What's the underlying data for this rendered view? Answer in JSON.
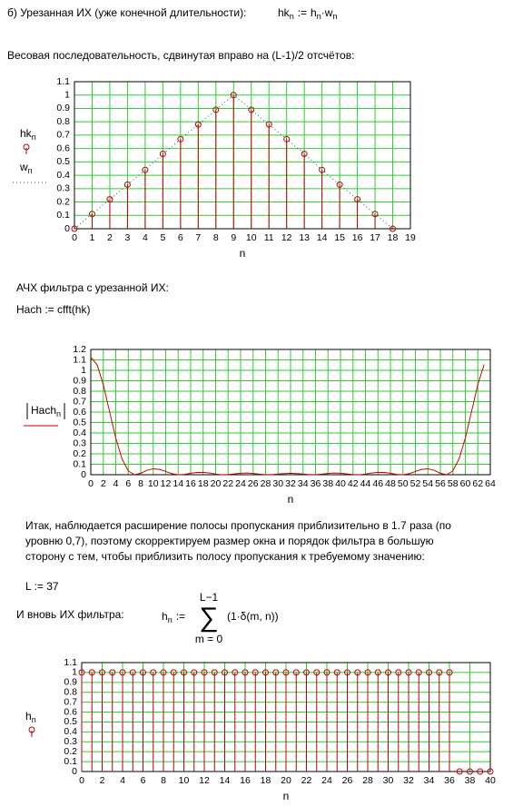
{
  "text": {
    "heading_b": "б) Урезанная ИХ (уже конечной длительности):",
    "formula_hk": [
      "hk",
      "n",
      ":=",
      "h",
      "n",
      "·",
      "w",
      "n"
    ],
    "weights_caption": "Весовая последовательность, сдвинутая вправо на (L-1)/2 отсчётов:",
    "afc_caption": "АЧХ фильтра с урезанной ИХ:",
    "formula_hach": "Hach := cfft(hk)",
    "conclusion": [
      "Итак, наблюдается расширение полосы пропускания приблизительно в 1.7 раза (по",
      "уровню 0,7), поэтому скорректируем размер окна и порядок фильтра в большую",
      "сторону с тем, чтобы приблизить полосу пропускания к требуемому значению:"
    ],
    "formula_L": "L := 37",
    "again_caption": "И вновь ИХ фильтра:",
    "formula_h": {
      "lhs": "h",
      "lhs_sub": "n",
      "op": ":=",
      "upper": "L−1",
      "sigma": "∑",
      "lower": "m = 0",
      "body": "(1·δ(m, n))"
    }
  },
  "chart_data": [
    {
      "type": "stem",
      "x_label": "n",
      "xlim": [
        0,
        19
      ],
      "ylim": [
        0,
        1.1
      ],
      "xticks": [
        0,
        1,
        2,
        3,
        4,
        5,
        6,
        7,
        8,
        9,
        10,
        11,
        12,
        13,
        14,
        15,
        16,
        17,
        18,
        19
      ],
      "yticks": [
        0,
        0.1,
        0.2,
        0.3,
        0.4,
        0.5,
        0.6,
        0.7,
        0.8,
        0.9,
        1,
        1.1
      ],
      "grid": true,
      "grid_color": "#33cc33",
      "x": [
        0,
        1,
        2,
        3,
        4,
        5,
        6,
        7,
        8,
        9,
        10,
        11,
        12,
        13,
        14,
        15,
        16,
        17,
        18
      ],
      "series": [
        {
          "name": "hk",
          "subscript": "n",
          "color": "#c00000",
          "values": [
            0,
            0.11,
            0.22,
            0.33,
            0.44,
            0.56,
            0.67,
            0.78,
            0.89,
            1,
            0.89,
            0.78,
            0.67,
            0.56,
            0.44,
            0.33,
            0.22,
            0.11,
            0
          ]
        },
        {
          "name": "w",
          "subscript": "n",
          "type": "line",
          "dash": "dotted",
          "color": "#007070",
          "values": [
            0,
            0.11,
            0.22,
            0.33,
            0.44,
            0.56,
            0.67,
            0.78,
            0.89,
            1,
            0.89,
            0.78,
            0.67,
            0.56,
            0.44,
            0.33,
            0.22,
            0.11,
            0
          ]
        }
      ]
    },
    {
      "type": "line",
      "x_label": "n",
      "xlim": [
        0,
        64
      ],
      "ylim": [
        0,
        1.2
      ],
      "xticks": [
        0,
        2,
        4,
        6,
        8,
        10,
        12,
        14,
        16,
        18,
        20,
        22,
        24,
        26,
        28,
        30,
        32,
        34,
        36,
        38,
        40,
        42,
        44,
        46,
        48,
        50,
        52,
        54,
        56,
        58,
        60,
        62,
        64
      ],
      "yticks": [
        0,
        0.1,
        0.2,
        0.3,
        0.4,
        0.5,
        0.6,
        0.7,
        0.8,
        0.9,
        1,
        1.1,
        1.2
      ],
      "grid": true,
      "grid_color": "#33cc33",
      "x": [
        0,
        1,
        2,
        3,
        4,
        5,
        6,
        7,
        8,
        9,
        10,
        11,
        12,
        13,
        14,
        15,
        16,
        17,
        18,
        19,
        20,
        21,
        22,
        23,
        24,
        25,
        26,
        27,
        28,
        29,
        30,
        31,
        32,
        33,
        34,
        35,
        36,
        37,
        38,
        39,
        40,
        41,
        42,
        43,
        44,
        45,
        46,
        47,
        48,
        49,
        50,
        51,
        52,
        53,
        54,
        55,
        56,
        57,
        58,
        59,
        60,
        61,
        62,
        63
      ],
      "series": [
        {
          "name": "Hach",
          "subscript": "n",
          "abs": true,
          "color": "#cc0000",
          "values": [
            1.125,
            1.055,
            0.864,
            0.607,
            0.351,
            0.152,
            0.037,
            0,
            0.014,
            0.042,
            0.057,
            0.051,
            0.031,
            0.01,
            0,
            0.003,
            0.014,
            0.022,
            0.023,
            0.016,
            0.006,
            0,
            0.002,
            0.008,
            0.014,
            0.016,
            0.012,
            0.005,
            0.001,
            0.001,
            0.006,
            0.011,
            0.014,
            0.011,
            0.006,
            0.001,
            0.001,
            0.005,
            0.012,
            0.016,
            0.014,
            0.008,
            0.002,
            0,
            0.006,
            0.016,
            0.023,
            0.022,
            0.014,
            0.003,
            0,
            0.01,
            0.031,
            0.051,
            0.057,
            0.042,
            0.014,
            0,
            0.037,
            0.152,
            0.351,
            0.607,
            0.864,
            1.055
          ]
        }
      ]
    },
    {
      "type": "stem",
      "x_label": "n",
      "xlim": [
        0,
        40
      ],
      "ylim": [
        0,
        1.1
      ],
      "xticks": [
        0,
        2,
        4,
        6,
        8,
        10,
        12,
        14,
        16,
        18,
        20,
        22,
        24,
        26,
        28,
        30,
        32,
        34,
        36,
        38,
        40
      ],
      "yticks": [
        0,
        0.1,
        0.2,
        0.3,
        0.4,
        0.5,
        0.6,
        0.7,
        0.8,
        0.9,
        1,
        1.1
      ],
      "grid": true,
      "grid_color": "#33cc33",
      "x": [
        0,
        1,
        2,
        3,
        4,
        5,
        6,
        7,
        8,
        9,
        10,
        11,
        12,
        13,
        14,
        15,
        16,
        17,
        18,
        19,
        20,
        21,
        22,
        23,
        24,
        25,
        26,
        27,
        28,
        29,
        30,
        31,
        32,
        33,
        34,
        35,
        36,
        37,
        38,
        39,
        40
      ],
      "series": [
        {
          "name": "h",
          "subscript": "n",
          "color": "#c00000",
          "values": [
            1,
            1,
            1,
            1,
            1,
            1,
            1,
            1,
            1,
            1,
            1,
            1,
            1,
            1,
            1,
            1,
            1,
            1,
            1,
            1,
            1,
            1,
            1,
            1,
            1,
            1,
            1,
            1,
            1,
            1,
            1,
            1,
            1,
            1,
            1,
            1,
            1,
            0,
            0,
            0,
            0
          ]
        }
      ]
    }
  ]
}
